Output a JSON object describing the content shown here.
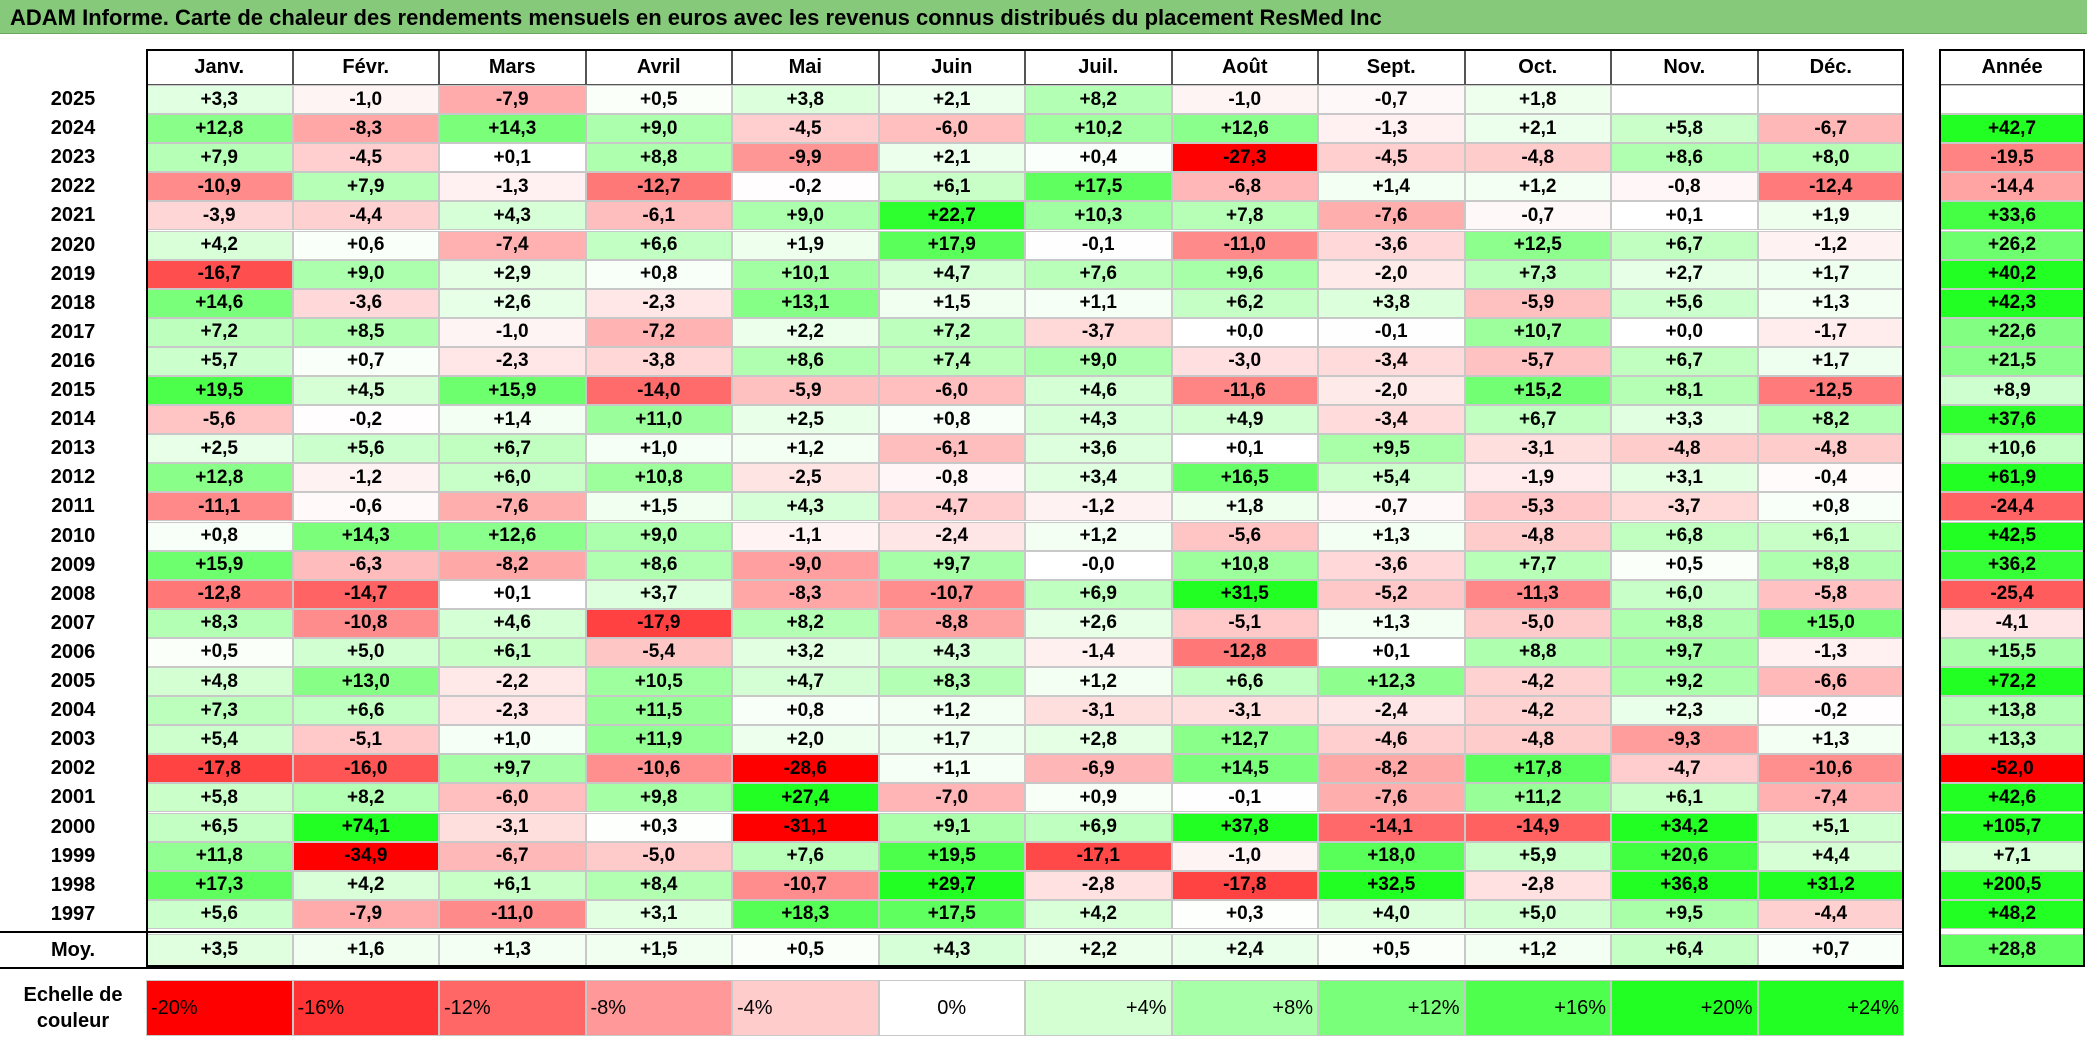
{
  "title": "ADAM Informe. Carte de chaleur des rendements mensuels en euros avec les revenus connus distribués du placement ResMed Inc",
  "chart_data": {
    "type": "heatmap",
    "months": [
      "Janv.",
      "Févr.",
      "Mars",
      "Avril",
      "Mai",
      "Juin",
      "Juil.",
      "Août",
      "Sept.",
      "Oct.",
      "Nov.",
      "Déc."
    ],
    "year_header": "Année",
    "rows": [
      {
        "year": "2025",
        "values": [
          3.3,
          -1.0,
          -7.9,
          0.5,
          3.8,
          2.1,
          8.2,
          -1.0,
          -0.7,
          1.8,
          null,
          null
        ],
        "total": null
      },
      {
        "year": "2024",
        "values": [
          12.8,
          -8.3,
          14.3,
          9.0,
          -4.5,
          -6.0,
          10.2,
          12.6,
          -1.3,
          2.1,
          5.8,
          -6.7
        ],
        "total": 42.7
      },
      {
        "year": "2023",
        "values": [
          7.9,
          -4.5,
          0.1,
          8.8,
          -9.9,
          2.1,
          0.4,
          -27.3,
          -4.5,
          -4.8,
          8.6,
          8.0
        ],
        "total": -19.5
      },
      {
        "year": "2022",
        "values": [
          -10.9,
          7.9,
          -1.3,
          -12.7,
          -0.2,
          6.1,
          17.5,
          -6.8,
          1.4,
          1.2,
          -0.8,
          -12.4
        ],
        "total": -14.4
      },
      {
        "year": "2021",
        "values": [
          -3.9,
          -4.4,
          4.3,
          -6.1,
          9.0,
          22.7,
          10.3,
          7.8,
          -7.6,
          -0.7,
          0.1,
          1.9
        ],
        "total": 33.6
      },
      {
        "year": "2020",
        "values": [
          4.2,
          0.6,
          -7.4,
          6.6,
          1.9,
          17.9,
          -0.1,
          -11.0,
          -3.6,
          12.5,
          6.7,
          -1.2
        ],
        "total": 26.2
      },
      {
        "year": "2019",
        "values": [
          -16.7,
          9.0,
          2.9,
          0.8,
          10.1,
          4.7,
          7.6,
          9.6,
          -2.0,
          7.3,
          2.7,
          1.7
        ],
        "total": 40.2
      },
      {
        "year": "2018",
        "values": [
          14.6,
          -3.6,
          2.6,
          -2.3,
          13.1,
          1.5,
          1.1,
          6.2,
          3.8,
          -5.9,
          5.6,
          1.3
        ],
        "total": 42.3
      },
      {
        "year": "2017",
        "values": [
          7.2,
          8.5,
          -1.0,
          -7.2,
          2.2,
          7.2,
          -3.7,
          0.0,
          -0.1,
          10.7,
          0.0,
          -1.7
        ],
        "total": 22.6
      },
      {
        "year": "2016",
        "values": [
          5.7,
          0.7,
          -2.3,
          -3.8,
          8.6,
          7.4,
          9.0,
          -3.0,
          -3.4,
          -5.7,
          6.7,
          1.7
        ],
        "total": 21.5
      },
      {
        "year": "2015",
        "values": [
          19.5,
          4.5,
          15.9,
          -14.0,
          -5.9,
          -6.0,
          4.6,
          -11.6,
          -2.0,
          15.2,
          8.1,
          -12.5
        ],
        "total": 8.9
      },
      {
        "year": "2014",
        "values": [
          -5.6,
          -0.2,
          1.4,
          11.0,
          2.5,
          0.8,
          4.3,
          4.9,
          -3.4,
          6.7,
          3.3,
          8.2
        ],
        "total": 37.6
      },
      {
        "year": "2013",
        "values": [
          2.5,
          5.6,
          6.7,
          1.0,
          1.2,
          -6.1,
          3.6,
          0.1,
          9.5,
          -3.1,
          -4.8,
          -4.8
        ],
        "total": 10.6
      },
      {
        "year": "2012",
        "values": [
          12.8,
          -1.2,
          6.0,
          10.8,
          -2.5,
          -0.8,
          3.4,
          16.5,
          5.4,
          -1.9,
          3.1,
          -0.4
        ],
        "total": 61.9
      },
      {
        "year": "2011",
        "values": [
          -11.1,
          -0.6,
          -7.6,
          1.5,
          4.3,
          -4.7,
          -1.2,
          1.8,
          -0.7,
          -5.3,
          -3.7,
          0.8
        ],
        "total": -24.4
      },
      {
        "year": "2010",
        "values": [
          0.8,
          14.3,
          12.6,
          9.0,
          -1.1,
          -2.4,
          1.2,
          -5.6,
          1.3,
          -4.8,
          6.8,
          6.1
        ],
        "total": 42.5
      },
      {
        "year": "2009",
        "values": [
          15.9,
          -6.3,
          -8.2,
          8.6,
          -9.0,
          9.7,
          -0.0,
          10.8,
          -3.6,
          7.7,
          0.5,
          8.8
        ],
        "total": 36.2
      },
      {
        "year": "2008",
        "values": [
          -12.8,
          -14.7,
          0.1,
          3.7,
          -8.3,
          -10.7,
          6.9,
          31.5,
          -5.2,
          -11.3,
          6.0,
          -5.8
        ],
        "total": -25.4
      },
      {
        "year": "2007",
        "values": [
          8.3,
          -10.8,
          4.6,
          -17.9,
          8.2,
          -8.8,
          2.6,
          -5.1,
          1.3,
          -5.0,
          8.8,
          15.0
        ],
        "total": -4.1
      },
      {
        "year": "2006",
        "values": [
          0.5,
          5.0,
          6.1,
          -5.4,
          3.2,
          4.3,
          -1.4,
          -12.8,
          0.1,
          8.8,
          9.7,
          -1.3
        ],
        "total": 15.5
      },
      {
        "year": "2005",
        "values": [
          4.8,
          13.0,
          -2.2,
          10.5,
          4.7,
          8.3,
          1.2,
          6.6,
          12.3,
          -4.2,
          9.2,
          -6.6
        ],
        "total": 72.2
      },
      {
        "year": "2004",
        "values": [
          7.3,
          6.6,
          -2.3,
          11.5,
          0.8,
          1.2,
          -3.1,
          -3.1,
          -2.4,
          -4.2,
          2.3,
          -0.2
        ],
        "total": 13.8
      },
      {
        "year": "2003",
        "values": [
          5.4,
          -5.1,
          1.0,
          11.9,
          2.0,
          1.7,
          2.8,
          12.7,
          -4.6,
          -4.8,
          -9.3,
          1.3
        ],
        "total": 13.3
      },
      {
        "year": "2002",
        "values": [
          -17.8,
          -16.0,
          9.7,
          -10.6,
          -28.6,
          1.1,
          -6.9,
          14.5,
          -8.2,
          17.8,
          -4.7,
          -10.6
        ],
        "total": -52.0
      },
      {
        "year": "2001",
        "values": [
          5.8,
          8.2,
          -6.0,
          9.8,
          27.4,
          -7.0,
          0.9,
          -0.1,
          -7.6,
          11.2,
          6.1,
          -7.4
        ],
        "total": 42.6
      },
      {
        "year": "2000",
        "values": [
          6.5,
          74.1,
          -3.1,
          0.3,
          -31.1,
          9.1,
          6.9,
          37.8,
          -14.1,
          -14.9,
          34.2,
          5.1
        ],
        "total": 105.7
      },
      {
        "year": "1999",
        "values": [
          11.8,
          -34.9,
          -6.7,
          -5.0,
          7.6,
          19.5,
          -17.1,
          -1.0,
          18.0,
          5.9,
          20.6,
          4.4
        ],
        "total": 7.1
      },
      {
        "year": "1998",
        "values": [
          17.3,
          4.2,
          6.1,
          8.4,
          -10.7,
          29.7,
          -2.8,
          -17.8,
          32.5,
          -2.8,
          36.8,
          31.2
        ],
        "total": 200.5
      },
      {
        "year": "1997",
        "values": [
          5.6,
          -7.9,
          -11.0,
          3.1,
          18.3,
          17.5,
          4.2,
          0.3,
          4.0,
          5.0,
          9.5,
          -4.4
        ],
        "total": 48.2
      }
    ],
    "average": {
      "label": "Moy.",
      "values": [
        3.5,
        1.6,
        1.3,
        1.5,
        0.5,
        4.3,
        2.2,
        2.4,
        0.5,
        1.2,
        6.4,
        0.7
      ],
      "total": 28.8
    },
    "scale": {
      "label_line1": "Echelle de",
      "label_line2": "couleur",
      "steps": [
        {
          "label": "-20%",
          "value": -20
        },
        {
          "label": "-16%",
          "value": -16
        },
        {
          "label": "-12%",
          "value": -12
        },
        {
          "label": "-8%",
          "value": -8
        },
        {
          "label": "-4%",
          "value": -4
        },
        {
          "label": "0%",
          "value": 0
        },
        {
          "label": "+4%",
          "value": 4
        },
        {
          "label": "+8%",
          "value": 8
        },
        {
          "label": "+12%",
          "value": 12
        },
        {
          "label": "+16%",
          "value": 16
        },
        {
          "label": "+20%",
          "value": 20
        },
        {
          "label": "+24%",
          "value": 24
        }
      ]
    },
    "colors": {
      "negative": "#ff0000",
      "neutral": "#ffffff",
      "positive": "#22ff22",
      "title_bg": "#86c97a"
    }
  }
}
